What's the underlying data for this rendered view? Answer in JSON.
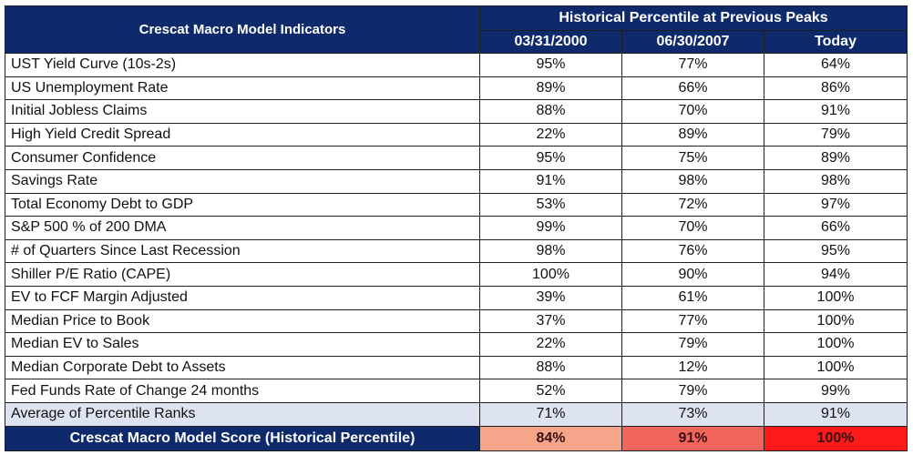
{
  "chart_data": {
    "type": "table",
    "header": {
      "indicator_col": "Crescat Macro Model Indicators",
      "group_label": "Historical Percentile at Previous Peaks",
      "columns": [
        "03/31/2000",
        "06/30/2007",
        "Today"
      ]
    },
    "rows": [
      {
        "label": "UST Yield Curve (10s-2s)",
        "values": [
          "95%",
          "77%",
          "64%"
        ]
      },
      {
        "label": "US Unemployment Rate",
        "values": [
          "89%",
          "66%",
          "86%"
        ]
      },
      {
        "label": "Initial Jobless Claims",
        "values": [
          "88%",
          "70%",
          "91%"
        ]
      },
      {
        "label": "High Yield Credit Spread",
        "values": [
          "22%",
          "89%",
          "79%"
        ]
      },
      {
        "label": "Consumer Confidence",
        "values": [
          "95%",
          "75%",
          "89%"
        ]
      },
      {
        "label": "Savings Rate",
        "values": [
          "91%",
          "98%",
          "98%"
        ]
      },
      {
        "label": "Total Economy Debt to GDP",
        "values": [
          "53%",
          "72%",
          "97%"
        ]
      },
      {
        "label": "S&P 500 % of 200 DMA",
        "values": [
          "99%",
          "70%",
          "66%"
        ]
      },
      {
        "label": "# of Quarters Since Last Recession",
        "values": [
          "98%",
          "76%",
          "95%"
        ]
      },
      {
        "label": "Shiller P/E Ratio (CAPE)",
        "values": [
          "100%",
          "90%",
          "94%"
        ]
      },
      {
        "label": "EV to FCF Margin Adjusted",
        "values": [
          "39%",
          "61%",
          "100%"
        ]
      },
      {
        "label": "Median Price to Book",
        "values": [
          "37%",
          "77%",
          "100%"
        ]
      },
      {
        "label": "Median EV to Sales",
        "values": [
          "22%",
          "79%",
          "100%"
        ]
      },
      {
        "label": "Median Corporate Debt to Assets",
        "values": [
          "88%",
          "12%",
          "100%"
        ]
      },
      {
        "label": "Fed Funds Rate of Change 24 months",
        "values": [
          "52%",
          "79%",
          "99%"
        ]
      }
    ],
    "average": {
      "label": "Average of Percentile Ranks",
      "values": [
        "71%",
        "73%",
        "91%"
      ]
    },
    "score": {
      "label": "Crescat Macro Model Score (Historical Percentile)",
      "values": [
        "84%",
        "91%",
        "100%"
      ],
      "colors": [
        "#f4a58a",
        "#f0665c",
        "#ff1a1a"
      ]
    }
  },
  "colors": {
    "header_bg": "#0f2a6b",
    "average_bg": "#dde3f0"
  }
}
